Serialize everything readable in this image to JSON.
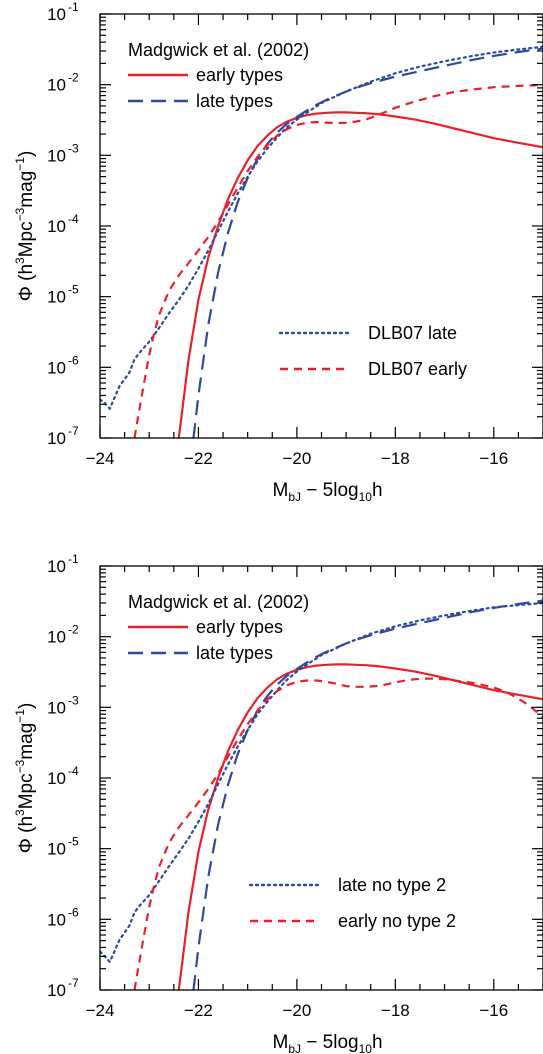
{
  "chart_data": [
    {
      "type": "line",
      "x_scale": "linear",
      "y_scale": "log",
      "xlim": [
        -24,
        -15
      ],
      "ylim": [
        1e-07,
        0.1
      ],
      "xticks": [
        -24,
        -22,
        -20,
        -18,
        -16
      ],
      "xtick_labels": [
        "−24",
        "−22",
        "−20",
        "−18",
        "−16"
      ],
      "yticks": [
        1e-07,
        1e-06,
        1e-05,
        0.0001,
        0.001,
        0.01,
        0.1
      ],
      "ytick_labels": [
        {
          "base": "10",
          "exp": "-7"
        },
        {
          "base": "10",
          "exp": "-6"
        },
        {
          "base": "10",
          "exp": "-5"
        },
        {
          "base": "10",
          "exp": "-4"
        },
        {
          "base": "10",
          "exp": "-3"
        },
        {
          "base": "10",
          "exp": "-2"
        },
        {
          "base": "10",
          "exp": "-1"
        }
      ],
      "xlabel": {
        "main": "M",
        "sub": "bJ",
        "rest": " − 5log",
        "sub2": "10",
        "tail": "h"
      },
      "ylabel": {
        "pre": "Φ  (h",
        "sup1": "3",
        "mid": "Mpc",
        "sup2": "−3",
        "mid2": "mag",
        "sup3": "−1",
        "post": ")"
      },
      "grid": false,
      "legend_title": "Madgwick et al. (2002)",
      "series": [
        {
          "name": "early types",
          "color": "#e8212a",
          "style": "solid",
          "x": [
            -22.4,
            -22.2,
            -22.0,
            -21.8,
            -21.6,
            -21.4,
            -21.2,
            -21.0,
            -20.8,
            -20.6,
            -20.4,
            -20.2,
            -20.0,
            -19.8,
            -19.6,
            -19.4,
            -19.2,
            -19.0,
            -18.8,
            -18.6,
            -18.4,
            -18.2,
            -18.0,
            -17.6,
            -17.2,
            -16.8,
            -16.4,
            -16.0,
            -15.6,
            -15.0
          ],
          "y": [
            1e-07,
            1.3e-06,
            9e-06,
            3.6e-05,
            0.0001,
            0.00024,
            0.00048,
            0.00085,
            0.00135,
            0.0019,
            0.0025,
            0.003,
            0.0034,
            0.0037,
            0.0039,
            0.004,
            0.00405,
            0.00405,
            0.004,
            0.00395,
            0.00385,
            0.0037,
            0.00355,
            0.0032,
            0.0028,
            0.0024,
            0.00205,
            0.00175,
            0.00155,
            0.0013
          ]
        },
        {
          "name": "late types",
          "color": "#2e4a9e",
          "style": "longdash",
          "x": [
            -22.1,
            -22.0,
            -21.8,
            -21.6,
            -21.4,
            -21.2,
            -21.0,
            -20.8,
            -20.6,
            -20.4,
            -20.2,
            -20.0,
            -19.8,
            -19.6,
            -19.4,
            -19.2,
            -19.0,
            -18.8,
            -18.5,
            -18.0,
            -17.5,
            -17.0,
            -16.5,
            -16.0,
            -15.5,
            -15.0
          ],
          "y": [
            1e-07,
            4e-07,
            4e-06,
            2.2e-05,
            8e-05,
            0.00022,
            0.00048,
            0.0009,
            0.00145,
            0.0021,
            0.0028,
            0.0035,
            0.0043,
            0.0052,
            0.0061,
            0.007,
            0.008,
            0.009,
            0.0105,
            0.013,
            0.0155,
            0.0185,
            0.022,
            0.0255,
            0.029,
            0.0325
          ]
        },
        {
          "name": "DLB07 late",
          "color": "#2e4a9e",
          "style": "dotted",
          "x": [
            -24.0,
            -23.9,
            -23.8,
            -23.7,
            -23.6,
            -23.5,
            -23.4,
            -23.3,
            -23.2,
            -23.0,
            -22.8,
            -22.6,
            -22.4,
            -22.2,
            -22.0,
            -21.8,
            -21.6,
            -21.4,
            -21.2,
            -21.0,
            -20.8,
            -20.6,
            -20.4,
            -20.2,
            -20.0,
            -19.8,
            -19.5,
            -19.0,
            -18.5,
            -18.0,
            -17.5,
            -17.0,
            -16.5,
            -16.0,
            -15.5,
            -15.0
          ],
          "y": [
            3.5e-07,
            3.1e-07,
            2.6e-07,
            3.8e-07,
            5.5e-07,
            6.8e-07,
            8.5e-07,
            1.3e-06,
            1.6e-06,
            2.3e-06,
            3.6e-06,
            5.8e-06,
            9e-06,
            1.45e-05,
            2.5e-05,
            4.5e-05,
            8.5e-05,
            0.00016,
            0.00029,
            0.0005,
            0.00082,
            0.00125,
            0.0018,
            0.0025,
            0.0032,
            0.004,
            0.0055,
            0.008,
            0.011,
            0.0145,
            0.018,
            0.0215,
            0.025,
            0.0285,
            0.0315,
            0.0345
          ]
        },
        {
          "name": "DLB07 early",
          "color": "#e8212a",
          "style": "shortdash",
          "x": [
            -23.3,
            -23.15,
            -23.0,
            -22.9,
            -22.8,
            -22.6,
            -22.4,
            -22.2,
            -22.0,
            -21.8,
            -21.6,
            -21.4,
            -21.2,
            -21.0,
            -20.8,
            -20.6,
            -20.4,
            -20.2,
            -20.0,
            -19.8,
            -19.6,
            -19.4,
            -19.2,
            -19.0,
            -18.8,
            -18.6,
            -18.4,
            -18.2,
            -18.0,
            -17.6,
            -17.2,
            -16.8,
            -16.4,
            -16.0,
            -15.5,
            -15.0
          ],
          "y": [
            1e-07,
            4e-07,
            1.5e-06,
            3e-06,
            5.5e-06,
            1.2e-05,
            2e-05,
            3e-05,
            4.5e-05,
            7e-05,
            0.000115,
            0.0002,
            0.00035,
            0.0006,
            0.00095,
            0.0014,
            0.0019,
            0.00235,
            0.0027,
            0.0029,
            0.00295,
            0.0029,
            0.00285,
            0.0029,
            0.003,
            0.0032,
            0.0036,
            0.0041,
            0.0047,
            0.0058,
            0.0069,
            0.0079,
            0.0086,
            0.0092,
            0.0096,
            0.0099
          ]
        }
      ]
    },
    {
      "type": "line",
      "x_scale": "linear",
      "y_scale": "log",
      "xlim": [
        -24,
        -15
      ],
      "ylim": [
        1e-07,
        0.1
      ],
      "xticks": [
        -24,
        -22,
        -20,
        -18,
        -16
      ],
      "xtick_labels": [
        "−24",
        "−22",
        "−20",
        "−18",
        "−16"
      ],
      "yticks": [
        1e-07,
        1e-06,
        1e-05,
        0.0001,
        0.001,
        0.01,
        0.1
      ],
      "ytick_labels": [
        {
          "base": "10",
          "exp": "-7"
        },
        {
          "base": "10",
          "exp": "-6"
        },
        {
          "base": "10",
          "exp": "-5"
        },
        {
          "base": "10",
          "exp": "-4"
        },
        {
          "base": "10",
          "exp": "-3"
        },
        {
          "base": "10",
          "exp": "-2"
        },
        {
          "base": "10",
          "exp": "-1"
        }
      ],
      "xlabel": {
        "main": "M",
        "sub": "bJ",
        "rest": " − 5log",
        "sub2": "10",
        "tail": "h"
      },
      "ylabel": {
        "pre": "Φ  (h",
        "sup1": "3",
        "mid": "Mpc",
        "sup2": "−3",
        "mid2": "mag",
        "sup3": "−1",
        "post": ")"
      },
      "grid": false,
      "legend_title": "Madgwick et al. (2002)",
      "series": [
        {
          "name": "early types",
          "color": "#e8212a",
          "style": "solid",
          "x": [
            -22.4,
            -22.2,
            -22.0,
            -21.8,
            -21.6,
            -21.4,
            -21.2,
            -21.0,
            -20.8,
            -20.6,
            -20.4,
            -20.2,
            -20.0,
            -19.8,
            -19.6,
            -19.4,
            -19.2,
            -19.0,
            -18.8,
            -18.6,
            -18.4,
            -18.2,
            -18.0,
            -17.6,
            -17.2,
            -16.8,
            -16.4,
            -16.0,
            -15.6,
            -15.0
          ],
          "y": [
            1e-07,
            1.3e-06,
            9e-06,
            3.6e-05,
            0.0001,
            0.00024,
            0.00048,
            0.00085,
            0.00135,
            0.0019,
            0.0025,
            0.003,
            0.0034,
            0.0037,
            0.0039,
            0.004,
            0.00405,
            0.00405,
            0.004,
            0.00395,
            0.00385,
            0.0037,
            0.00355,
            0.0032,
            0.0028,
            0.0024,
            0.00205,
            0.00175,
            0.00155,
            0.0013
          ]
        },
        {
          "name": "late types",
          "color": "#2e4a9e",
          "style": "longdash",
          "x": [
            -22.1,
            -22.0,
            -21.8,
            -21.6,
            -21.4,
            -21.2,
            -21.0,
            -20.8,
            -20.6,
            -20.4,
            -20.2,
            -20.0,
            -19.8,
            -19.6,
            -19.4,
            -19.2,
            -19.0,
            -18.8,
            -18.5,
            -18.0,
            -17.5,
            -17.0,
            -16.5,
            -16.0,
            -15.5,
            -15.0
          ],
          "y": [
            1e-07,
            4e-07,
            4e-06,
            2.2e-05,
            8e-05,
            0.00022,
            0.00048,
            0.0009,
            0.00145,
            0.0021,
            0.0028,
            0.0035,
            0.0043,
            0.0052,
            0.0061,
            0.007,
            0.008,
            0.009,
            0.0105,
            0.013,
            0.0155,
            0.0185,
            0.022,
            0.0255,
            0.029,
            0.0325
          ]
        },
        {
          "name": "late no type 2",
          "color": "#2e4a9e",
          "style": "dotted",
          "x": [
            -24.0,
            -23.9,
            -23.8,
            -23.7,
            -23.6,
            -23.5,
            -23.4,
            -23.3,
            -23.2,
            -23.0,
            -22.8,
            -22.6,
            -22.4,
            -22.2,
            -22.0,
            -21.8,
            -21.6,
            -21.4,
            -21.2,
            -21.0,
            -20.8,
            -20.6,
            -20.4,
            -20.2,
            -20.0,
            -19.8,
            -19.5,
            -19.0,
            -18.5,
            -18.0,
            -17.5,
            -17.0,
            -16.5,
            -16.0,
            -15.5,
            -15.0
          ],
          "y": [
            3.5e-07,
            3e-07,
            2.5e-07,
            3.6e-07,
            5.2e-07,
            6.5e-07,
            8.2e-07,
            1.25e-06,
            1.55e-06,
            2.2e-06,
            3.5e-06,
            5.6e-06,
            8.8e-06,
            1.4e-05,
            2.4e-05,
            4.3e-05,
            8.2e-05,
            0.000155,
            0.00028,
            0.00048,
            0.0008,
            0.0012,
            0.00175,
            0.00245,
            0.0032,
            0.004,
            0.0055,
            0.008,
            0.011,
            0.014,
            0.017,
            0.02,
            0.023,
            0.026,
            0.028,
            0.03
          ]
        },
        {
          "name": "early no type 2",
          "color": "#e8212a",
          "style": "shortdash",
          "x": [
            -23.3,
            -23.15,
            -23.0,
            -22.9,
            -22.8,
            -22.6,
            -22.4,
            -22.2,
            -22.0,
            -21.8,
            -21.6,
            -21.4,
            -21.2,
            -21.0,
            -20.8,
            -20.6,
            -20.4,
            -20.2,
            -20.0,
            -19.8,
            -19.6,
            -19.4,
            -19.2,
            -19.0,
            -18.8,
            -18.6,
            -18.4,
            -18.2,
            -18.0,
            -17.8,
            -17.6,
            -17.4,
            -17.2,
            -17.0,
            -16.8,
            -16.6,
            -16.4,
            -16.2,
            -16.0,
            -15.8,
            -15.6,
            -15.4,
            -15.2,
            -15.0
          ],
          "y": [
            1e-07,
            4e-07,
            1.5e-06,
            3e-06,
            5.5e-06,
            1.2e-05,
            2e-05,
            3e-05,
            4.5e-05,
            7e-05,
            0.000115,
            0.0002,
            0.00035,
            0.00058,
            0.0009,
            0.0013,
            0.0017,
            0.00205,
            0.0023,
            0.0024,
            0.0024,
            0.0023,
            0.00215,
            0.002,
            0.00195,
            0.00195,
            0.002,
            0.0021,
            0.00225,
            0.0024,
            0.0025,
            0.00255,
            0.00255,
            0.0025,
            0.0024,
            0.0023,
            0.0022,
            0.00205,
            0.0019,
            0.0017,
            0.00145,
            0.0012,
            0.00095,
            0.00072
          ]
        }
      ]
    }
  ]
}
